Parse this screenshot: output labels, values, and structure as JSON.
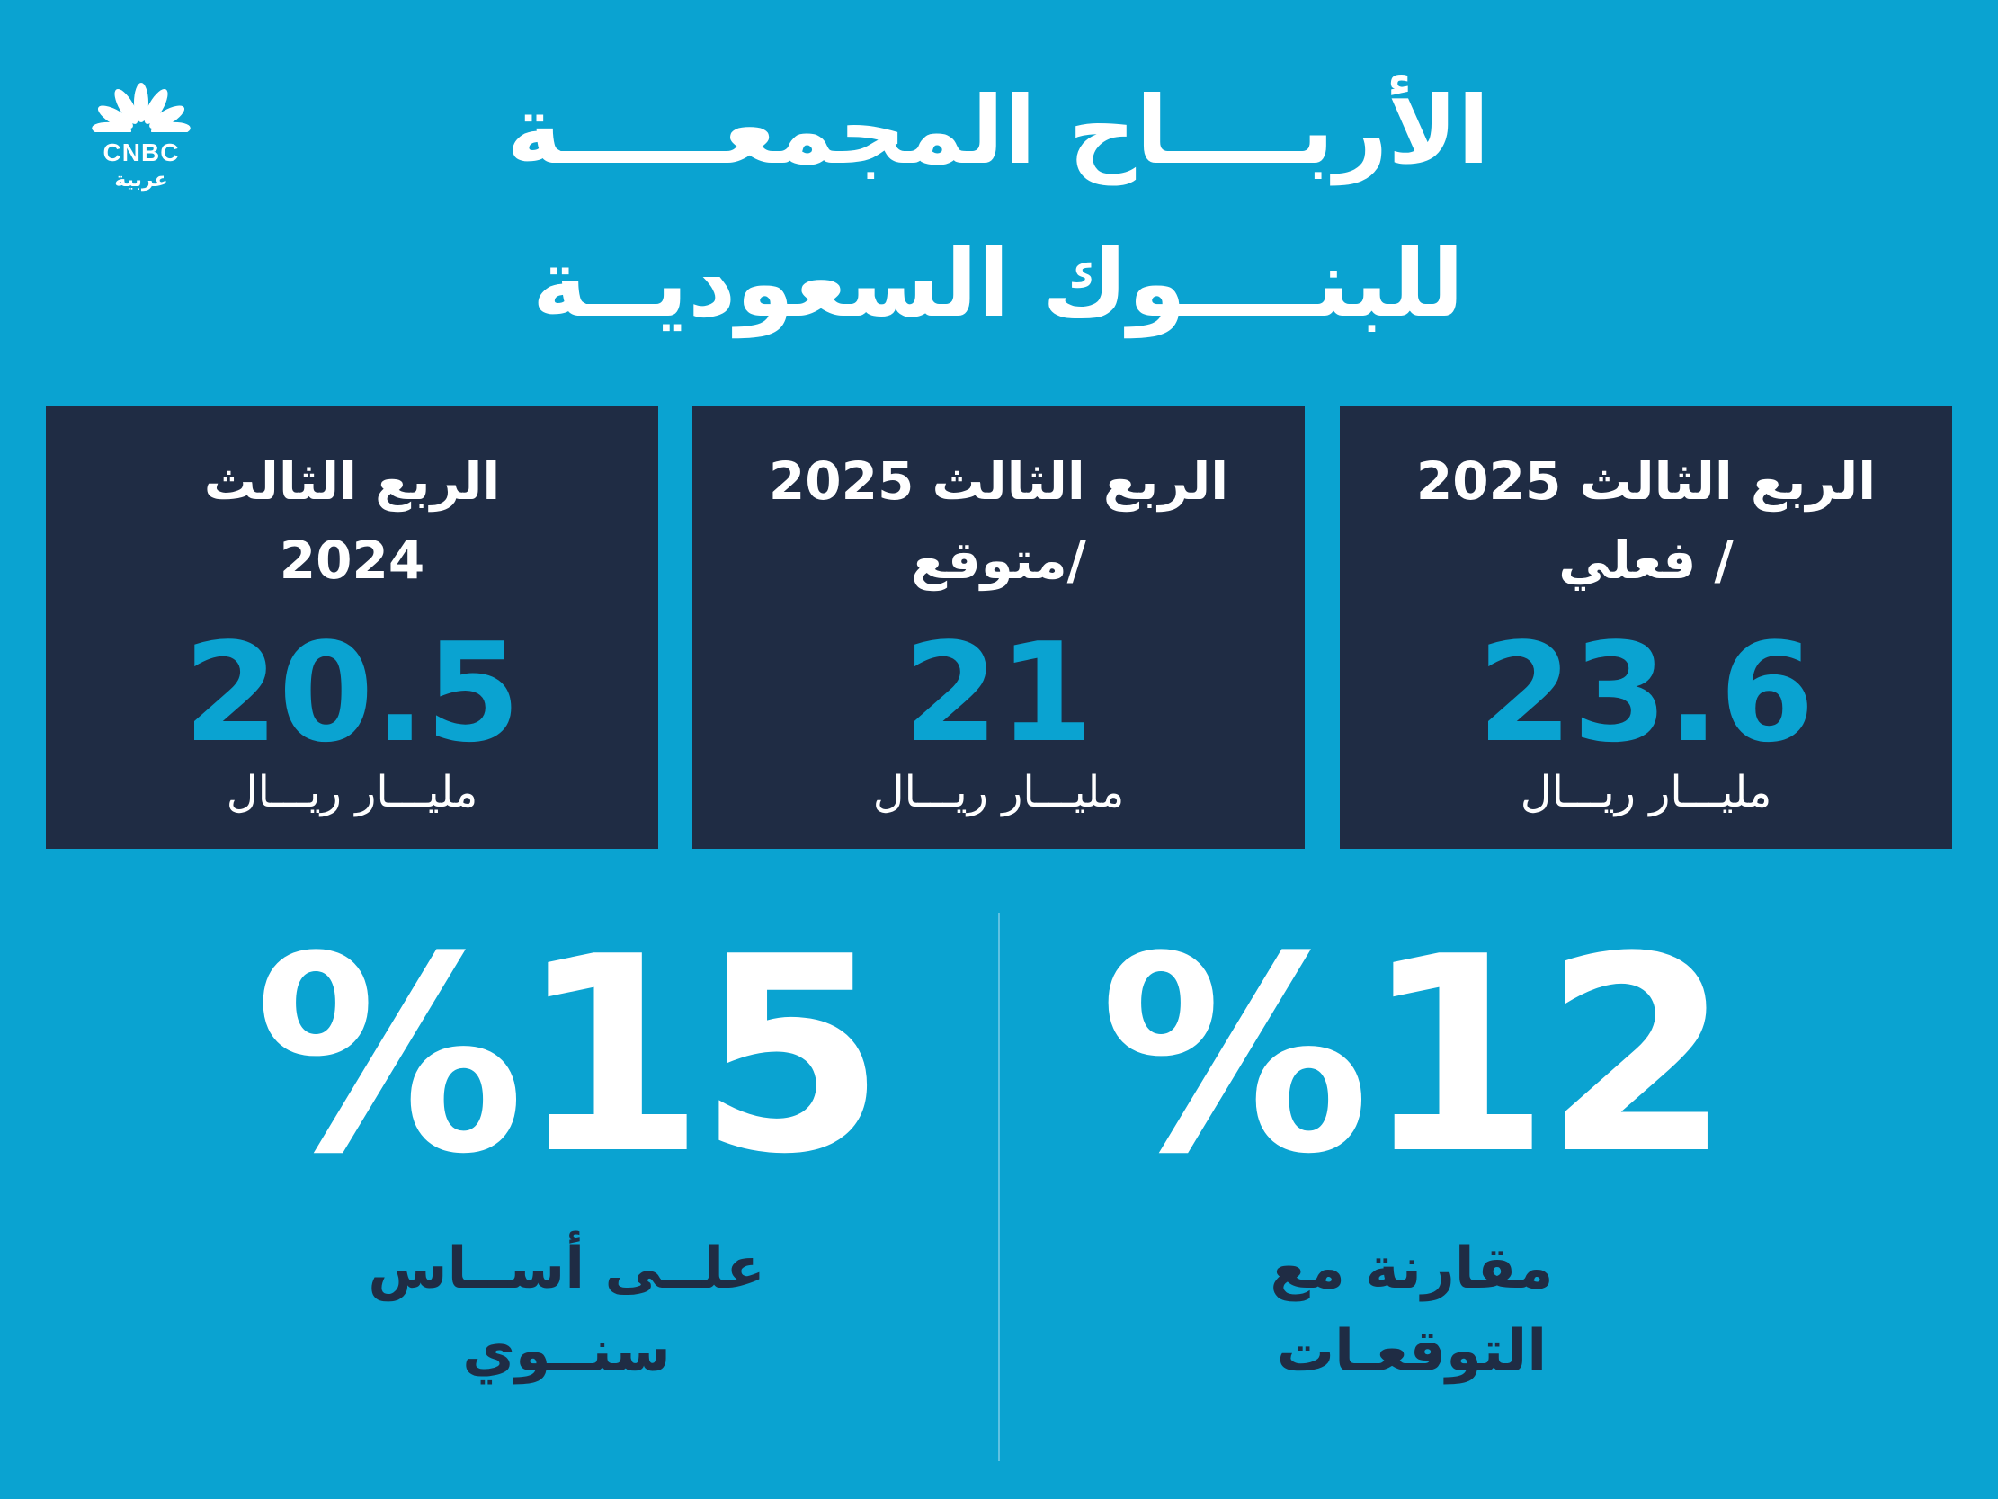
{
  "logo": {
    "latin": "CNBC",
    "arabic": "عربية"
  },
  "title": {
    "line1": "الأربــــاح المجمعـــــة",
    "line2": "للبنــــوك السعوديــة"
  },
  "cards": [
    {
      "head1": "الربع الثالث 2025",
      "head2": "/ فعلي",
      "value": "23.6",
      "unit": "مليـــار ريـــال"
    },
    {
      "head1": "الربع الثالث 2025",
      "head2": "/متوقع",
      "value": "21",
      "unit": "مليـــار ريـــال"
    },
    {
      "head1": "الربع الثالث",
      "head2": "2024",
      "value": "20.5",
      "unit": "مليـــار ريـــال"
    }
  ],
  "stats": [
    {
      "value": "%12",
      "caption1": "مقارنة مع",
      "caption2": "التوقعـات"
    },
    {
      "value": "%15",
      "caption1": "علــى أســاس",
      "caption2": "سنــوي"
    }
  ],
  "colors": {
    "background": "#0aa3d1",
    "card": "#1f2c44",
    "accent": "#0aa3d1",
    "text": "#ffffff"
  }
}
